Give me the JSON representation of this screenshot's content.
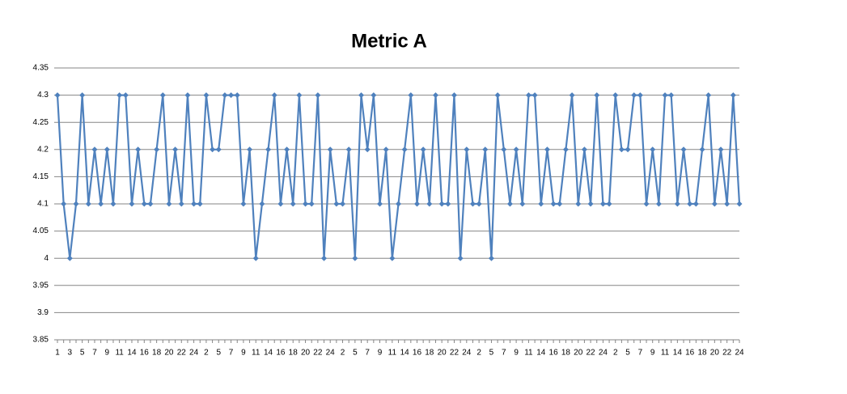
{
  "chart_data": {
    "type": "line",
    "title": "Metric A",
    "categories": [
      "1",
      null,
      "3",
      null,
      "5",
      null,
      "7",
      null,
      "9",
      null,
      "11",
      null,
      "14",
      null,
      "16",
      null,
      "18",
      null,
      "20",
      null,
      "22",
      null,
      "24",
      null,
      "2",
      null,
      "5",
      null,
      "7",
      null,
      "9",
      null,
      "11",
      null,
      "14",
      null,
      "16",
      null,
      "18",
      null,
      "20",
      null,
      "22",
      null,
      "24",
      null,
      "2",
      null,
      "5",
      null,
      "7",
      null,
      "9",
      null,
      "11",
      null,
      "14",
      null,
      "16",
      null,
      "18",
      null,
      "20",
      null,
      "22",
      null,
      "24",
      null,
      "2",
      null,
      "5",
      null,
      "7",
      null,
      "9",
      null,
      "11",
      null,
      "14",
      null,
      "16",
      null,
      "18",
      null,
      "20",
      null,
      "22",
      null,
      "24",
      null,
      "2",
      null,
      "5",
      null,
      "7",
      null,
      "9",
      null,
      "11",
      null,
      "14",
      null,
      "16",
      null,
      "18",
      null,
      "20",
      null,
      "22",
      null,
      "24"
    ],
    "series": [
      {
        "name": "Metric A",
        "color": "#4f81bd",
        "values": [
          4.3,
          4.1,
          4.0,
          4.1,
          4.3,
          4.1,
          4.2,
          4.1,
          4.2,
          4.1,
          4.3,
          4.3,
          4.1,
          4.2,
          4.1,
          4.1,
          4.2,
          4.3,
          4.1,
          4.2,
          4.1,
          4.3,
          4.1,
          4.1,
          4.3,
          4.2,
          4.2,
          4.3,
          4.3,
          4.3,
          4.1,
          4.2,
          4.0,
          4.1,
          4.2,
          4.3,
          4.1,
          4.2,
          4.1,
          4.3,
          4.1,
          4.1,
          4.3,
          4.0,
          4.2,
          4.1,
          4.1,
          4.2,
          4.0,
          4.3,
          4.2,
          4.3,
          4.1,
          4.2,
          4.0,
          4.1,
          4.2,
          4.3,
          4.1,
          4.2,
          4.1,
          4.3,
          4.1,
          4.1,
          4.3,
          4.0,
          4.2,
          4.1,
          4.1,
          4.2,
          4.0,
          4.3,
          4.2,
          4.1,
          4.2,
          4.1,
          4.3,
          4.3,
          4.1,
          4.2,
          4.1,
          4.1,
          4.2,
          4.3,
          4.1,
          4.2,
          4.1,
          4.3,
          4.1,
          4.1,
          4.3,
          4.2,
          4.2,
          4.3,
          4.3,
          4.1,
          4.2,
          4.1,
          4.3,
          4.3,
          4.1,
          4.2,
          4.1,
          4.1,
          4.2,
          4.3,
          4.1,
          4.2,
          4.1,
          4.3,
          4.1
        ]
      }
    ],
    "ylim": [
      3.85,
      4.35
    ],
    "yticks": [
      3.85,
      3.9,
      3.95,
      4,
      4.05,
      4.1,
      4.15,
      4.2,
      4.25,
      4.3,
      4.35
    ],
    "grid": true
  }
}
